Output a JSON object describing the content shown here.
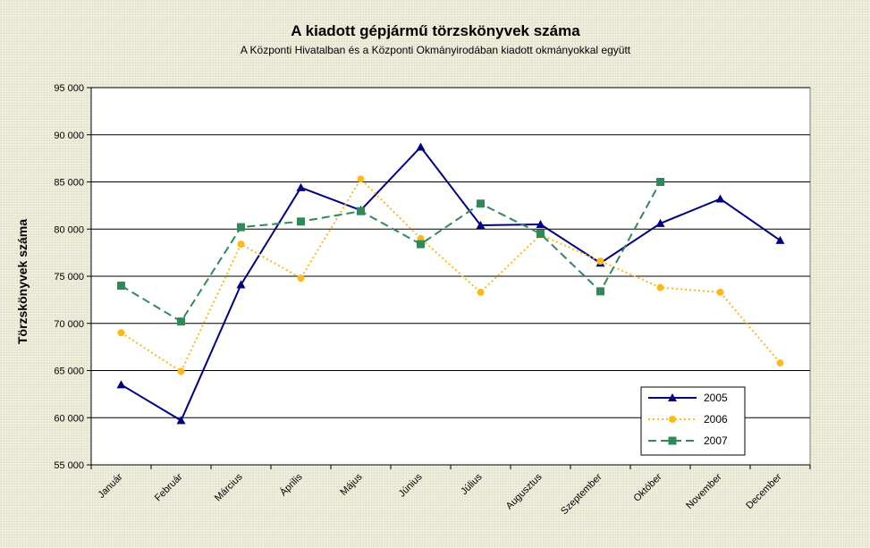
{
  "chart_data": {
    "type": "line",
    "title": "A  kiadott gépjármű  törzskönyvek száma",
    "subtitle": "A Központi Hivatalban és a Központi Okmányirodában kiadott okmányokkal együtt",
    "ylabel": "Törzskönyvek száma",
    "xlabel": "",
    "ylim": [
      55000,
      95000
    ],
    "yticks": [
      55000,
      60000,
      65000,
      70000,
      75000,
      80000,
      85000,
      90000,
      95000
    ],
    "ytick_labels": [
      "55 000",
      "60 000",
      "65 000",
      "70 000",
      "75 000",
      "80 000",
      "85 000",
      "90 000",
      "95 000"
    ],
    "grid": "horizontal",
    "legend_position": "bottom-right",
    "categories": [
      "Január",
      "Február",
      "Március",
      "Április",
      "Május",
      "Június",
      "Július",
      "Augusztus",
      "Szeptember",
      "Október",
      "November",
      "December"
    ],
    "series": [
      {
        "name": "2005",
        "color": "#000080",
        "line_style": "solid",
        "marker": "triangle",
        "values": [
          63500,
          59700,
          74100,
          84400,
          82000,
          88700,
          80400,
          80500,
          76400,
          80600,
          83200,
          78800
        ]
      },
      {
        "name": "2006",
        "color": "#ffb81c",
        "line_style": "dotted",
        "marker": "circle",
        "values": [
          69000,
          64900,
          78400,
          74800,
          85300,
          79000,
          73300,
          79400,
          76600,
          73800,
          73300,
          65800
        ]
      },
      {
        "name": "2007",
        "color": "#2e8b57",
        "line_style": "dashed",
        "marker": "square",
        "values": [
          74000,
          70200,
          80200,
          80800,
          81900,
          78400,
          82700,
          79500,
          73400,
          85000,
          null,
          null
        ]
      }
    ]
  }
}
